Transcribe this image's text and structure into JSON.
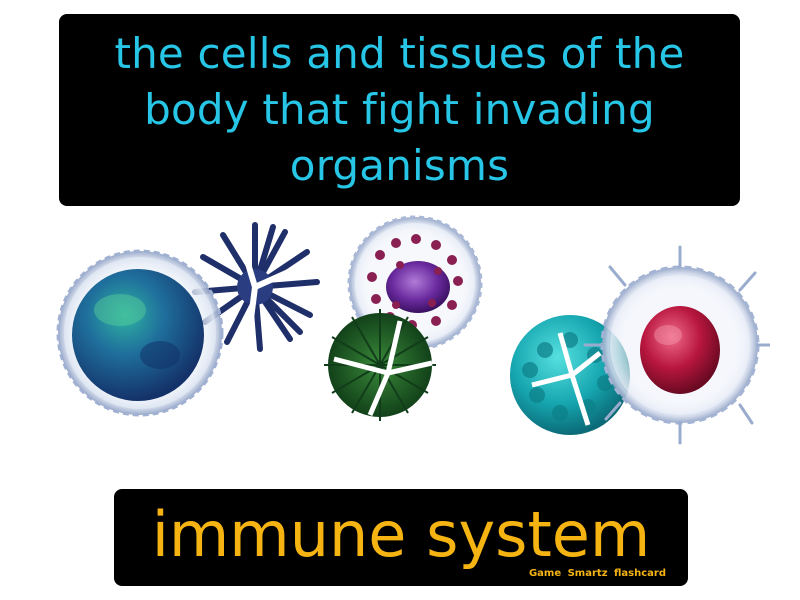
{
  "card": {
    "definition": "the cells and tissues of the body that fight invading organisms",
    "term": "immune system",
    "brand": "Game Smartz flashcard"
  },
  "colors": {
    "definition_text": "#27c6e6",
    "term_text": "#f6b412",
    "box_background": "#000000"
  }
}
